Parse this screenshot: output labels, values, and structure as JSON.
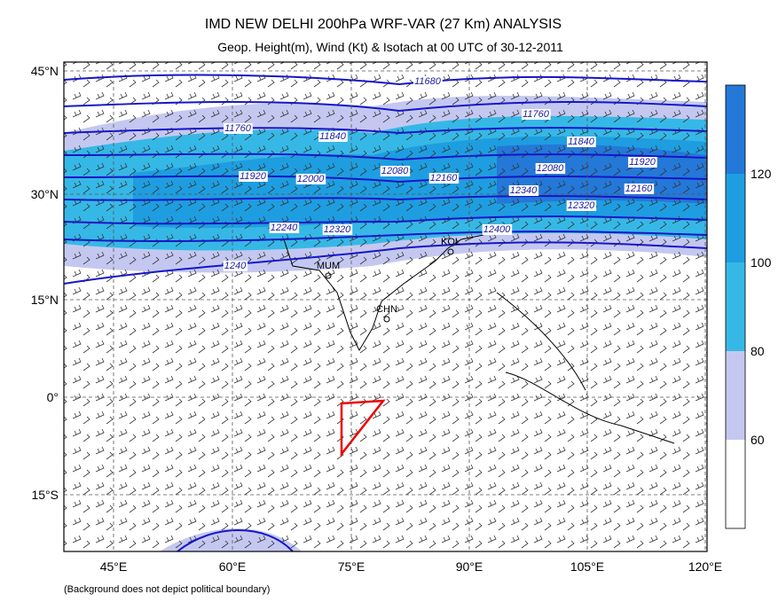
{
  "header": {
    "title": "IMD NEW DELHI 200hPa WRF-VAR (27 Km) ANALYSIS",
    "subtitle": "Geop. Height(m), Wind (Kt) & Isotach  at 00 UTC of 30-12-2011"
  },
  "map": {
    "lat_labels": [
      "45°N",
      "30°N",
      "15°N",
      "0°",
      "15°S"
    ],
    "lon_labels": [
      "45°E",
      "60°E",
      "75°E",
      "90°E",
      "105°E",
      "120°E"
    ]
  },
  "contour_labels": [
    "11680",
    "11760",
    "11760",
    "11840",
    "11840",
    "11920",
    "11920",
    "12000",
    "12080",
    "12080",
    "12160",
    "12160",
    "12240",
    "12320",
    "12320",
    "12340",
    "12400",
    "1240"
  ],
  "stations": [
    "KOL",
    "MUM",
    "CHN"
  ],
  "colorbar": {
    "labels": [
      "120",
      "100",
      "80",
      "60"
    ]
  },
  "footnote": "(Background does not depict political boundary)"
}
